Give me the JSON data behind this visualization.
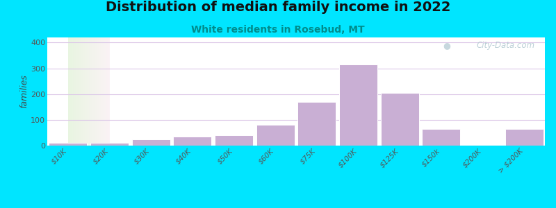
{
  "title": "Distribution of median family income in 2022",
  "subtitle": "White residents in Rosebud, MT",
  "ylabel": "families",
  "categories": [
    "$10K",
    "$20K",
    "$30K",
    "$40K",
    "$50K",
    "$60K",
    "$75K",
    "$100K",
    "$125K",
    "$150k",
    "$200K",
    "> $200K"
  ],
  "values": [
    10,
    10,
    25,
    35,
    40,
    80,
    170,
    315,
    205,
    65,
    0,
    65
  ],
  "bar_color": "#c9afd4",
  "bar_edge_color": "#ffffff",
  "ylim": [
    0,
    420
  ],
  "yticks": [
    0,
    100,
    200,
    300,
    400
  ],
  "title_fontsize": 14,
  "subtitle_fontsize": 10,
  "ylabel_fontsize": 9,
  "tick_fontsize": 7.5,
  "background_outer": "#00e5ff",
  "watermark_text": "City-Data.com",
  "title_color": "#111111",
  "subtitle_color": "#008b8b",
  "grid_color": "#dcc8e8",
  "ylabel_color": "#444444"
}
